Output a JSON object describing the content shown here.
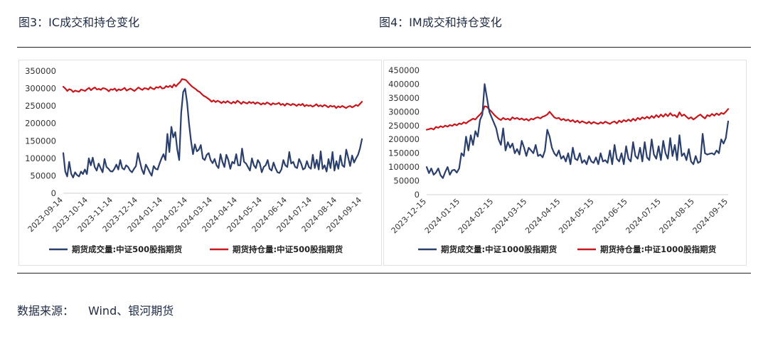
{
  "titles": {
    "left": "图3：IC成交和持仓变化",
    "right": "图4：IM成交和持仓变化"
  },
  "source": {
    "label": "数据来源：",
    "value": "Wind、银河期货"
  },
  "colors": {
    "volume": "#2a3f6b",
    "open_interest": "#c8161d",
    "axis_text": "#333333",
    "frame": "#e2e2e2"
  },
  "chart_data": [
    {
      "type": "line",
      "ylim": [
        0,
        350000
      ],
      "yticks": [
        "0",
        "50000",
        "100000",
        "150000",
        "200000",
        "250000",
        "300000",
        "350000"
      ],
      "xticks": [
        "2023-09-14",
        "2023-10-14",
        "2023-11-14",
        "2023-12-14",
        "2024-01-14",
        "2024-02-14",
        "2024-03-14",
        "2024-04-14",
        "2024-05-14",
        "2024-06-14",
        "2024-07-14",
        "2024-08-14",
        "2024-09-14"
      ],
      "legend_position": "bottom",
      "series": [
        {
          "name": "期货成交量:中证500股指期货",
          "color": "#2a3f6b",
          "values": [
            115000,
            62000,
            48000,
            90000,
            56000,
            45000,
            60000,
            52000,
            48000,
            62000,
            55000,
            68000,
            55000,
            100000,
            80000,
            102000,
            75000,
            65000,
            85000,
            72000,
            60000,
            98000,
            75000,
            70000,
            63000,
            62000,
            70000,
            82000,
            68000,
            95000,
            72000,
            68000,
            80000,
            75000,
            65000,
            60000,
            70000,
            78000,
            115000,
            90000,
            68000,
            55000,
            82000,
            72000,
            60000,
            50000,
            78000,
            70000,
            68000,
            85000,
            100000,
            112000,
            95000,
            170000,
            118000,
            190000,
            160000,
            175000,
            125000,
            95000,
            230000,
            290000,
            300000,
            260000,
            200000,
            150000,
            112000,
            140000,
            120000,
            125000,
            138000,
            100000,
            95000,
            110000,
            115000,
            95000,
            86000,
            98000,
            80000,
            72000,
            112000,
            90000,
            75000,
            110000,
            95000,
            70000,
            90000,
            85000,
            112000,
            80000,
            80000,
            128000,
            90000,
            85000,
            75000,
            65000,
            100000,
            80000,
            72000,
            95000,
            86000,
            60000,
            75000,
            80000,
            95000,
            70000,
            65000,
            88000,
            72000,
            60000,
            58000,
            68000,
            95000,
            80000,
            75000,
            118000,
            85000,
            90000,
            75000,
            72000,
            98000,
            86000,
            68000,
            72000,
            92000,
            75000,
            70000,
            110000,
            72000,
            96000,
            68000,
            120000,
            70000,
            80000,
            62000,
            98000,
            72000,
            118000,
            65000,
            92000,
            70000,
            108000,
            80000,
            75000,
            125000,
            102000,
            78000,
            108000,
            88000,
            100000,
            110000,
            128000,
            155000
          ]
        },
        {
          "name": "期货持仓量:中证500股指期货",
          "color": "#c8161d",
          "values": [
            305000,
            300000,
            293000,
            298000,
            296000,
            290000,
            294000,
            292000,
            291000,
            297000,
            295000,
            293000,
            298000,
            302000,
            295000,
            300000,
            303000,
            297000,
            299000,
            296000,
            301000,
            300000,
            297000,
            292000,
            298000,
            296000,
            300000,
            293000,
            298000,
            295000,
            298000,
            302000,
            294000,
            297000,
            300000,
            296000,
            293000,
            298000,
            303000,
            299000,
            296000,
            301000,
            300000,
            297000,
            304000,
            300000,
            298000,
            304000,
            302000,
            306000,
            300000,
            301000,
            307000,
            304000,
            308000,
            303000,
            312000,
            306000,
            313000,
            318000,
            327000,
            326000,
            324000,
            318000,
            312000,
            306000,
            302000,
            298000,
            293000,
            290000,
            284000,
            279000,
            276000,
            272000,
            268000,
            262000,
            266000,
            261000,
            265000,
            262000,
            258000,
            263000,
            259000,
            264000,
            260000,
            257000,
            262000,
            258000,
            265000,
            261000,
            256000,
            262000,
            259000,
            257000,
            262000,
            258000,
            261000,
            256000,
            260000,
            258000,
            254000,
            258000,
            255000,
            260000,
            257000,
            253000,
            258000,
            255000,
            256000,
            259000,
            253000,
            256000,
            251000,
            257000,
            255000,
            252000,
            256000,
            254000,
            250000,
            255000,
            252000,
            256000,
            249000,
            253000,
            250000,
            252000,
            248000,
            251000,
            255000,
            249000,
            252000,
            248000,
            253000,
            250000,
            246000,
            251000,
            248000,
            250000,
            244000,
            249000,
            246000,
            250000,
            247000,
            244000,
            248000,
            250000,
            246000,
            249000,
            253000,
            250000,
            256000,
            262000
          ]
        }
      ]
    },
    {
      "type": "line",
      "ylim": [
        0,
        450000
      ],
      "yticks": [
        "0",
        "50000",
        "100000",
        "150000",
        "200000",
        "250000",
        "300000",
        "350000",
        "400000",
        "450000"
      ],
      "xticks": [
        "2023-12-15",
        "2024-01-15",
        "2024-02-15",
        "2024-03-15",
        "2024-04-15",
        "2024-05-15",
        "2024-06-15",
        "2024-07-15",
        "2024-08-15",
        "2024-09-15"
      ],
      "legend_position": "bottom",
      "series": [
        {
          "name": "期货成交量:中证1000股指期货",
          "color": "#2a3f6b",
          "values": [
            100000,
            78000,
            95000,
            72000,
            80000,
            95000,
            70000,
            60000,
            82000,
            100000,
            72000,
            88000,
            90000,
            80000,
            95000,
            150000,
            140000,
            210000,
            160000,
            215000,
            180000,
            230000,
            210000,
            270000,
            290000,
            400000,
            350000,
            300000,
            280000,
            260000,
            240000,
            200000,
            180000,
            240000,
            160000,
            190000,
            170000,
            185000,
            150000,
            165000,
            145000,
            195000,
            170000,
            140000,
            170000,
            160000,
            150000,
            180000,
            140000,
            145000,
            135000,
            160000,
            235000,
            210000,
            170000,
            150000,
            140000,
            160000,
            130000,
            140000,
            120000,
            150000,
            110000,
            170000,
            130000,
            125000,
            150000,
            115000,
            125000,
            110000,
            140000,
            120000,
            115000,
            135000,
            110000,
            150000,
            120000,
            125000,
            115000,
            160000,
            110000,
            180000,
            130000,
            120000,
            150000,
            110000,
            175000,
            130000,
            120000,
            190000,
            140000,
            130000,
            170000,
            120000,
            190000,
            135000,
            125000,
            200000,
            145000,
            130000,
            175000,
            125000,
            195000,
            150000,
            130000,
            205000,
            140000,
            180000,
            125000,
            215000,
            140000,
            150000,
            125000,
            165000,
            120000,
            110000,
            140000,
            115000,
            120000,
            220000,
            150000,
            145000,
            148000,
            150000,
            145000,
            160000,
            150000,
            200000,
            185000,
            205000,
            265000
          ]
        },
        {
          "name": "期货持仓量:中证1000股指期货",
          "color": "#c8161d",
          "values": [
            235000,
            237000,
            240000,
            236000,
            245000,
            242000,
            248000,
            244000,
            250000,
            246000,
            252000,
            249000,
            255000,
            251000,
            258000,
            255000,
            262000,
            258000,
            265000,
            270000,
            275000,
            272000,
            282000,
            290000,
            300000,
            320000,
            318000,
            308000,
            300000,
            290000,
            282000,
            275000,
            270000,
            278000,
            272000,
            275000,
            270000,
            280000,
            274000,
            278000,
            272000,
            276000,
            270000,
            274000,
            268000,
            275000,
            272000,
            278000,
            280000,
            276000,
            282000,
            285000,
            290000,
            300000,
            290000,
            280000,
            276000,
            278000,
            270000,
            274000,
            268000,
            272000,
            265000,
            270000,
            262000,
            268000,
            260000,
            266000,
            262000,
            258000,
            264000,
            257000,
            263000,
            259000,
            256000,
            262000,
            258000,
            264000,
            260000,
            256000,
            262000,
            265000,
            258000,
            268000,
            262000,
            270000,
            265000,
            272000,
            266000,
            275000,
            268000,
            278000,
            272000,
            280000,
            275000,
            282000,
            276000,
            285000,
            278000,
            288000,
            280000,
            290000,
            282000,
            292000,
            284000,
            295000,
            286000,
            288000,
            280000,
            298000,
            285000,
            290000,
            282000,
            275000,
            280000,
            272000,
            278000,
            285000,
            290000,
            282000,
            276000,
            288000,
            284000,
            292000,
            286000,
            294000,
            288000,
            296000,
            292000,
            300000,
            310000
          ]
        }
      ]
    }
  ]
}
